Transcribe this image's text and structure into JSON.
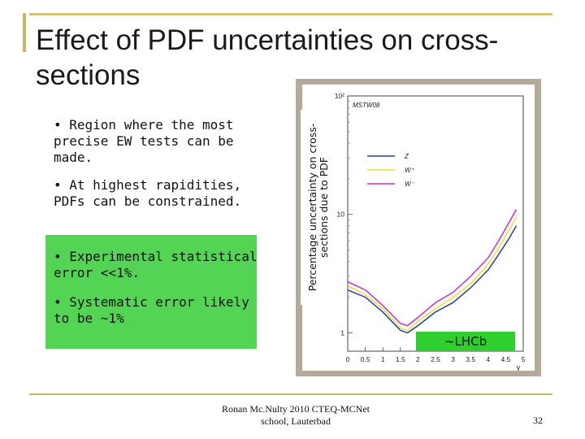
{
  "slide": {
    "title": "Effect of PDF uncertainties on cross-sections",
    "bullets": [
      "• Region where the most precise EW tests can be made.",
      "• At highest rapidities, PDFs can be constrained."
    ],
    "green_bullets": [
      "• Experimental statistical error <<1%.",
      "• Systematic error likely to be ~1%"
    ],
    "ylabel": "Percentage uncertainty on cross-sections due to PDF",
    "lhcb_label": "~LHCb",
    "footer_line1": "Ronan Mc.Nulty 2010 CTEQ-MCNet",
    "footer_line2": "school, Lauterbad",
    "page_number": "32",
    "colors": {
      "accent_rule": "#c9b660",
      "green_box": "#54d454",
      "lhcb_box": "#2fcf2f"
    }
  },
  "chart_data": {
    "type": "line",
    "plot_label": "MSTW08",
    "xlabel": "y",
    "x_ticks": [
      "0",
      "0.5",
      "1",
      "1.5",
      "2",
      "2.5",
      "3",
      "3.5",
      "4",
      "4.5",
      "5"
    ],
    "y_ticks": [
      "1",
      "10",
      "10²"
    ],
    "xlim": [
      0,
      5
    ],
    "ylim": [
      0.7,
      100
    ],
    "yscale": "log",
    "legend_position": "top-right",
    "series": [
      {
        "name": "Z",
        "color": "#1f3fa8",
        "x": [
          0,
          0.5,
          1,
          1.5,
          1.7,
          2,
          2.5,
          3,
          3.5,
          4,
          4.3,
          4.6,
          4.8
        ],
        "y": [
          2.3,
          2.0,
          1.5,
          1.05,
          1.0,
          1.15,
          1.5,
          1.8,
          2.4,
          3.4,
          4.6,
          6.3,
          8.0
        ]
      },
      {
        "name": "W⁺",
        "color": "#e2e232",
        "x": [
          0,
          0.5,
          1,
          1.5,
          1.7,
          2,
          2.5,
          3,
          3.5,
          4,
          4.3,
          4.6,
          4.8
        ],
        "y": [
          2.5,
          2.1,
          1.6,
          1.1,
          1.05,
          1.25,
          1.6,
          2.0,
          2.6,
          3.8,
          5.2,
          7.4,
          9.5
        ]
      },
      {
        "name": "W⁻",
        "color": "#d02ad0",
        "x": [
          0,
          0.5,
          1,
          1.5,
          1.7,
          2,
          2.5,
          3,
          3.5,
          4,
          4.3,
          4.6,
          4.8
        ],
        "y": [
          2.7,
          2.3,
          1.7,
          1.2,
          1.15,
          1.35,
          1.8,
          2.2,
          3.0,
          4.3,
          6.0,
          8.6,
          11.0
        ]
      }
    ]
  }
}
